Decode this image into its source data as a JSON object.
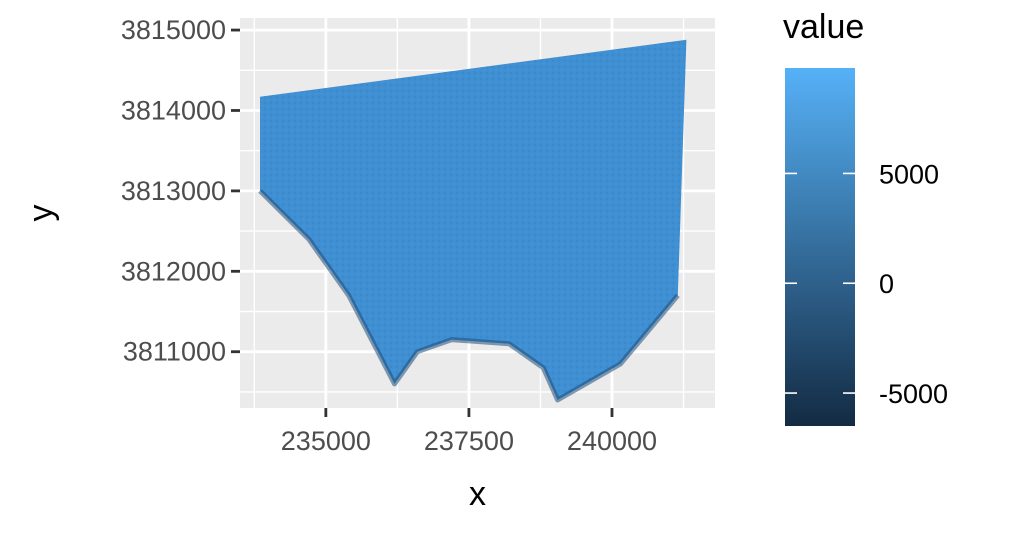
{
  "chart_data": {
    "type": "heatmap",
    "xlabel": "x",
    "ylabel": "y",
    "xlim": [
      233500,
      241800
    ],
    "ylim": [
      3810300,
      3815150
    ],
    "x_ticks": [
      235000,
      237500,
      240000
    ],
    "x_tick_labels": [
      "235000",
      "237500",
      "240000"
    ],
    "y_ticks": [
      3811000,
      3812000,
      3813000,
      3814000,
      3815000
    ],
    "y_tick_labels": [
      "3811000",
      "3812000",
      "3813000",
      "3814000",
      "3815000"
    ],
    "grid": true,
    "raster_outline": [
      [
        233850,
        3814170
      ],
      [
        241300,
        3814880
      ],
      [
        241150,
        3811700
      ],
      [
        240150,
        3810850
      ],
      [
        239050,
        3810400
      ],
      [
        238800,
        3810800
      ],
      [
        238200,
        3811100
      ],
      [
        237200,
        3811150
      ],
      [
        236600,
        3811000
      ],
      [
        236200,
        3810600
      ],
      [
        235400,
        3811700
      ],
      [
        234700,
        3812400
      ],
      [
        233850,
        3813000
      ]
    ],
    "legend": {
      "title": "value",
      "position": "right",
      "range": [
        -6500,
        9800
      ],
      "ticks": [
        5000,
        0,
        -5000
      ],
      "tick_labels": [
        "5000",
        "0",
        "-5000"
      ],
      "color_low": "#132b43",
      "color_high": "#56b1f7"
    },
    "colors": {
      "panel_background": "#ebebeb",
      "grid": "#ffffff",
      "raster_fill": "#3f8fd3"
    }
  }
}
